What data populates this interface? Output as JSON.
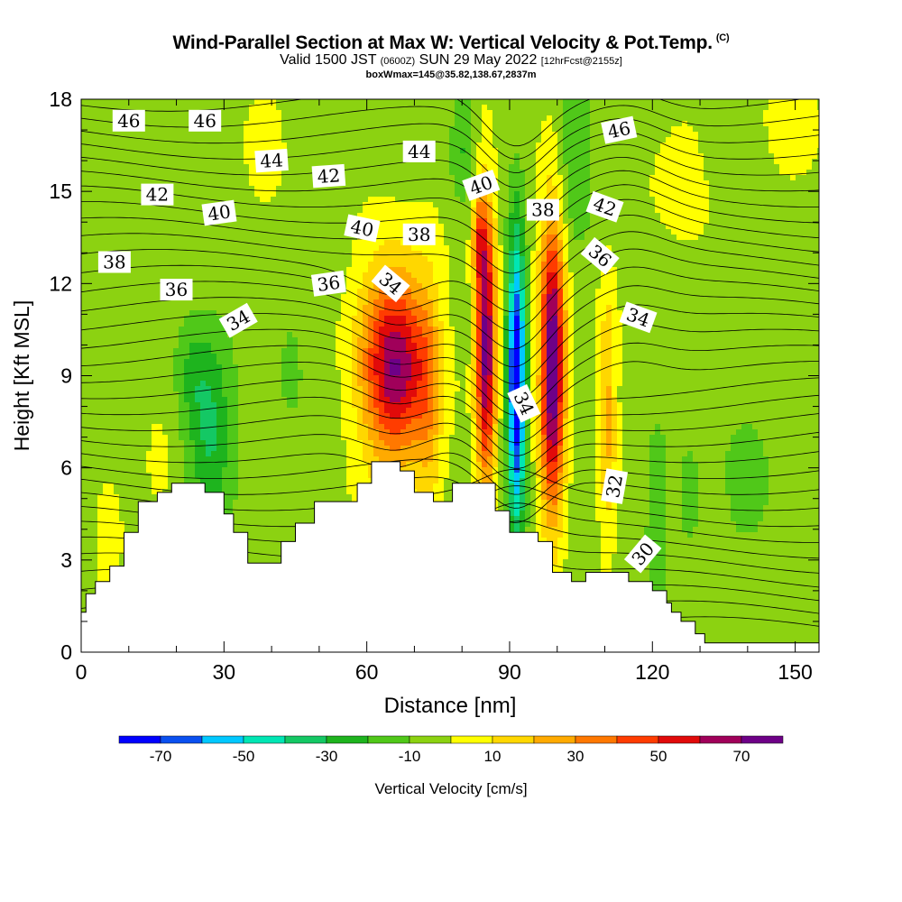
{
  "header": {
    "title": "Wind-Parallel Section at Max W: Vertical Velocity & Pot.Temp.",
    "title_tag": "(C)",
    "valid_a": "Valid 1500 JST",
    "valid_utc": "(0600Z)",
    "valid_b": "SUN 29 May 2022",
    "forecast": "[12hrFcst@2155z]",
    "box_info": "boxWmax=145@35.82,138.67,2837m"
  },
  "chart_data": {
    "type": "heatmap",
    "xlabel": "Distance [nm]",
    "ylabel": "Height [Kft MSL]",
    "xlim": [
      0,
      155
    ],
    "ylim": [
      0,
      18
    ],
    "x_ticks": [
      0,
      30,
      60,
      90,
      120,
      150
    ],
    "y_ticks": [
      0,
      3,
      6,
      9,
      12,
      15,
      18
    ],
    "colorbar": {
      "label": "Vertical Velocity [cm/s]",
      "tick_values": [
        -70,
        -50,
        -30,
        -10,
        10,
        30,
        50,
        70
      ],
      "tick_labels": [
        "-70",
        "-50",
        "-30",
        "-10",
        "10",
        "30",
        "50",
        "70"
      ],
      "bin_edges": [
        -80,
        -70,
        -60,
        -50,
        -40,
        -30,
        -20,
        -10,
        0,
        10,
        20,
        30,
        40,
        50,
        60,
        70,
        80
      ],
      "colors": [
        "#0000ff",
        "#0a50f0",
        "#00c8ff",
        "#00e6b4",
        "#14c864",
        "#1eb41e",
        "#50c819",
        "#8cd211",
        "#ffff00",
        "#ffd700",
        "#ffaa00",
        "#ff7800",
        "#ff3c00",
        "#e10a0a",
        "#a0005a",
        "#6e0087"
      ]
    },
    "terrain_profile": [
      [
        0,
        1.3
      ],
      [
        1,
        1.3
      ],
      [
        1,
        1.9
      ],
      [
        3,
        1.9
      ],
      [
        3,
        2.3
      ],
      [
        6,
        2.3
      ],
      [
        6,
        2.8
      ],
      [
        9,
        2.8
      ],
      [
        9,
        3.9
      ],
      [
        12,
        3.9
      ],
      [
        12,
        4.9
      ],
      [
        16,
        4.9
      ],
      [
        16,
        5.2
      ],
      [
        19,
        5.2
      ],
      [
        19,
        5.5
      ],
      [
        26,
        5.5
      ],
      [
        26,
        5.2
      ],
      [
        30,
        5.2
      ],
      [
        30,
        4.5
      ],
      [
        32,
        4.5
      ],
      [
        32,
        3.9
      ],
      [
        35,
        3.9
      ],
      [
        35,
        2.9
      ],
      [
        42,
        2.9
      ],
      [
        42,
        3.6
      ],
      [
        45,
        3.6
      ],
      [
        45,
        4.2
      ],
      [
        49,
        4.2
      ],
      [
        49,
        4.9
      ],
      [
        58,
        4.9
      ],
      [
        58,
        5.5
      ],
      [
        61,
        5.5
      ],
      [
        61,
        6.2
      ],
      [
        67,
        6.2
      ],
      [
        67,
        5.9
      ],
      [
        70,
        5.9
      ],
      [
        70,
        5.2
      ],
      [
        74,
        5.2
      ],
      [
        74,
        4.9
      ],
      [
        78,
        4.9
      ],
      [
        78,
        5.5
      ],
      [
        87,
        5.5
      ],
      [
        87,
        4.6
      ],
      [
        90,
        4.6
      ],
      [
        90,
        3.9
      ],
      [
        96,
        3.9
      ],
      [
        96,
        3.6
      ],
      [
        99,
        3.6
      ],
      [
        99,
        2.6
      ],
      [
        103,
        2.6
      ],
      [
        103,
        2.3
      ],
      [
        106,
        2.3
      ],
      [
        106,
        2.6
      ],
      [
        115,
        2.6
      ],
      [
        115,
        2.3
      ],
      [
        120,
        2.3
      ],
      [
        120,
        2.0
      ],
      [
        123,
        2.0
      ],
      [
        123,
        1.6
      ],
      [
        124,
        1.6
      ],
      [
        124,
        1.3
      ],
      [
        126,
        1.3
      ],
      [
        126,
        1.0
      ],
      [
        129,
        1.0
      ],
      [
        129,
        0.6
      ],
      [
        131,
        0.6
      ],
      [
        131,
        0.3
      ],
      [
        155,
        0.3
      ]
    ],
    "w_features": [
      {
        "x": 66,
        "z": 9.3,
        "sx": 7,
        "sz": 3.2,
        "w": 75
      },
      {
        "x": 73,
        "z": 8.0,
        "sx": 2.6,
        "sz": 4.2,
        "w": 18
      },
      {
        "x": 85,
        "z": 10.0,
        "sx": 2.1,
        "sz": 4.6,
        "w": 80
      },
      {
        "x": 83.5,
        "z": 13.5,
        "sx": 1.4,
        "sz": 1.5,
        "w": 30
      },
      {
        "x": 91.5,
        "z": 8.8,
        "sx": 1.9,
        "sz": 4.8,
        "w": -82
      },
      {
        "x": 99,
        "z": 9.3,
        "sx": 2.6,
        "sz": 4.8,
        "w": 86
      },
      {
        "x": 110.5,
        "z": 7.8,
        "sx": 1.9,
        "sz": 4.0,
        "w": 26
      },
      {
        "x": 121,
        "z": 4.5,
        "sx": 2.2,
        "sz": 2.6,
        "w": -14
      },
      {
        "x": 27,
        "z": 7.2,
        "sx": 4.5,
        "sz": 3.0,
        "w": -28
      },
      {
        "x": 23,
        "z": 9.0,
        "sx": 3.5,
        "sz": 1.8,
        "w": -14
      },
      {
        "x": 44,
        "z": 9.2,
        "sx": 2.0,
        "sz": 1.4,
        "w": -14
      },
      {
        "x": 16,
        "z": 6.2,
        "sx": 3.0,
        "sz": 1.6,
        "w": 9
      },
      {
        "x": 6,
        "z": 3.3,
        "sx": 2.5,
        "sz": 2.0,
        "w": 10
      },
      {
        "x": 80,
        "z": 16.5,
        "sx": 2.5,
        "sz": 2.0,
        "w": -16
      },
      {
        "x": 140,
        "z": 5.5,
        "sx": 5,
        "sz": 2.0,
        "w": -12
      },
      {
        "x": 128,
        "z": 5.0,
        "sx": 3,
        "sz": 1.8,
        "w": -12
      },
      {
        "x": 125,
        "z": 15.5,
        "sx": 6,
        "sz": 2.2,
        "w": 9
      },
      {
        "x": 150,
        "z": 17,
        "sx": 6,
        "sz": 1.6,
        "w": 10
      },
      {
        "x": 38,
        "z": 16.5,
        "sx": 4,
        "sz": 2.0,
        "w": 9
      },
      {
        "x": 104,
        "z": 16,
        "sx": 4,
        "sz": 2.5,
        "w": -14
      }
    ],
    "theta_labels": [
      {
        "text": "46",
        "x": 10,
        "z": 17.3,
        "angle": 0
      },
      {
        "text": "46",
        "x": 26,
        "z": 17.3,
        "angle": 0
      },
      {
        "text": "44",
        "x": 40,
        "z": 16.0,
        "angle": -4
      },
      {
        "text": "44",
        "x": 71,
        "z": 16.3,
        "angle": 0
      },
      {
        "text": "46",
        "x": 113,
        "z": 17.0,
        "angle": -12
      },
      {
        "text": "42",
        "x": 16,
        "z": 14.9,
        "angle": 0
      },
      {
        "text": "42",
        "x": 52,
        "z": 15.5,
        "angle": -4
      },
      {
        "text": "40",
        "x": 29,
        "z": 14.3,
        "angle": -8
      },
      {
        "text": "40",
        "x": 59,
        "z": 13.8,
        "angle": 12
      },
      {
        "text": "40",
        "x": 84,
        "z": 15.2,
        "angle": -20
      },
      {
        "text": "38",
        "x": 7,
        "z": 12.7,
        "angle": 0
      },
      {
        "text": "38",
        "x": 71,
        "z": 13.6,
        "angle": 0
      },
      {
        "text": "38",
        "x": 97,
        "z": 14.4,
        "angle": 0
      },
      {
        "text": "42",
        "x": 110,
        "z": 14.5,
        "angle": 20
      },
      {
        "text": "36",
        "x": 20,
        "z": 11.8,
        "angle": 0
      },
      {
        "text": "36",
        "x": 52,
        "z": 12.0,
        "angle": -8
      },
      {
        "text": "34",
        "x": 65,
        "z": 12.0,
        "angle": 40
      },
      {
        "text": "36",
        "x": 109,
        "z": 12.9,
        "angle": 40
      },
      {
        "text": "34",
        "x": 33,
        "z": 10.8,
        "angle": -30
      },
      {
        "text": "34",
        "x": 117,
        "z": 10.9,
        "angle": 20
      },
      {
        "text": "34",
        "x": 93,
        "z": 8.1,
        "angle": 65
      },
      {
        "text": "32",
        "x": 112,
        "z": 5.4,
        "angle": -80
      },
      {
        "text": "30",
        "x": 118,
        "z": 3.2,
        "angle": -50
      }
    ]
  }
}
